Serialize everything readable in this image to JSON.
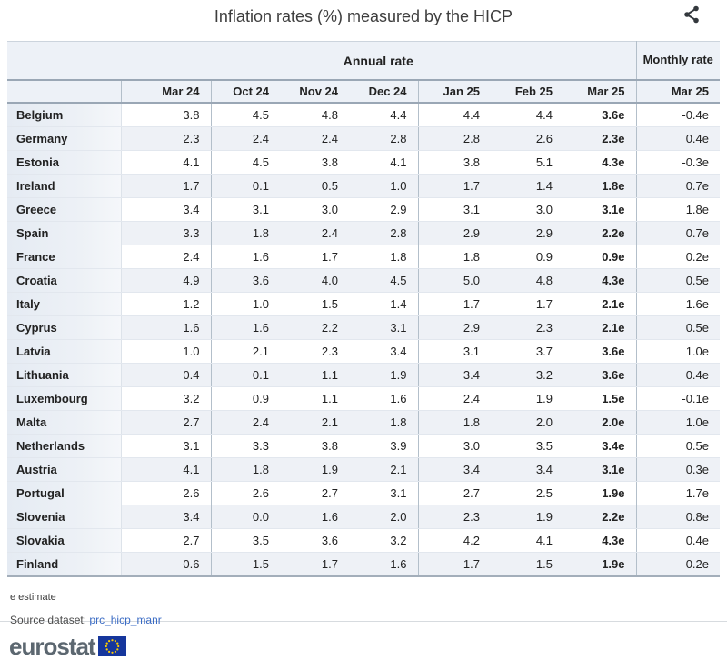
{
  "title": "Inflation rates (%) measured by the HICP",
  "toolbar": {
    "share_icon": "share-icon"
  },
  "table": {
    "annual_header": "Annual rate",
    "monthly_header": "Monthly rate",
    "columns": [
      "Mar 24",
      "Oct 24",
      "Nov 24",
      "Dec 24",
      "Jan 25",
      "Feb 25",
      "Mar 25"
    ],
    "monthly_column": "Mar 25",
    "rows": [
      {
        "country": "Belgium",
        "values": [
          "3.8",
          "4.5",
          "4.8",
          "4.4",
          "4.4",
          "4.4",
          "3.6e"
        ],
        "monthly": "-0.4e"
      },
      {
        "country": "Germany",
        "values": [
          "2.3",
          "2.4",
          "2.4",
          "2.8",
          "2.8",
          "2.6",
          "2.3e"
        ],
        "monthly": "0.4e"
      },
      {
        "country": "Estonia",
        "values": [
          "4.1",
          "4.5",
          "3.8",
          "4.1",
          "3.8",
          "5.1",
          "4.3e"
        ],
        "monthly": "-0.3e"
      },
      {
        "country": "Ireland",
        "values": [
          "1.7",
          "0.1",
          "0.5",
          "1.0",
          "1.7",
          "1.4",
          "1.8e"
        ],
        "monthly": "0.7e"
      },
      {
        "country": "Greece",
        "values": [
          "3.4",
          "3.1",
          "3.0",
          "2.9",
          "3.1",
          "3.0",
          "3.1e"
        ],
        "monthly": "1.8e"
      },
      {
        "country": "Spain",
        "values": [
          "3.3",
          "1.8",
          "2.4",
          "2.8",
          "2.9",
          "2.9",
          "2.2e"
        ],
        "monthly": "0.7e"
      },
      {
        "country": "France",
        "values": [
          "2.4",
          "1.6",
          "1.7",
          "1.8",
          "1.8",
          "0.9",
          "0.9e"
        ],
        "monthly": "0.2e"
      },
      {
        "country": "Croatia",
        "values": [
          "4.9",
          "3.6",
          "4.0",
          "4.5",
          "5.0",
          "4.8",
          "4.3e"
        ],
        "monthly": "0.5e"
      },
      {
        "country": "Italy",
        "values": [
          "1.2",
          "1.0",
          "1.5",
          "1.4",
          "1.7",
          "1.7",
          "2.1e"
        ],
        "monthly": "1.6e"
      },
      {
        "country": "Cyprus",
        "values": [
          "1.6",
          "1.6",
          "2.2",
          "3.1",
          "2.9",
          "2.3",
          "2.1e"
        ],
        "monthly": "0.5e"
      },
      {
        "country": "Latvia",
        "values": [
          "1.0",
          "2.1",
          "2.3",
          "3.4",
          "3.1",
          "3.7",
          "3.6e"
        ],
        "monthly": "1.0e"
      },
      {
        "country": "Lithuania",
        "values": [
          "0.4",
          "0.1",
          "1.1",
          "1.9",
          "3.4",
          "3.2",
          "3.6e"
        ],
        "monthly": "0.4e"
      },
      {
        "country": "Luxembourg",
        "values": [
          "3.2",
          "0.9",
          "1.1",
          "1.6",
          "2.4",
          "1.9",
          "1.5e"
        ],
        "monthly": "-0.1e"
      },
      {
        "country": "Malta",
        "values": [
          "2.7",
          "2.4",
          "2.1",
          "1.8",
          "1.8",
          "2.0",
          "2.0e"
        ],
        "monthly": "1.0e"
      },
      {
        "country": "Netherlands",
        "values": [
          "3.1",
          "3.3",
          "3.8",
          "3.9",
          "3.0",
          "3.5",
          "3.4e"
        ],
        "monthly": "0.5e"
      },
      {
        "country": "Austria",
        "values": [
          "4.1",
          "1.8",
          "1.9",
          "2.1",
          "3.4",
          "3.4",
          "3.1e"
        ],
        "monthly": "0.3e"
      },
      {
        "country": "Portugal",
        "values": [
          "2.6",
          "2.6",
          "2.7",
          "3.1",
          "2.7",
          "2.5",
          "1.9e"
        ],
        "monthly": "1.7e"
      },
      {
        "country": "Slovenia",
        "values": [
          "3.4",
          "0.0",
          "1.6",
          "2.0",
          "2.3",
          "1.9",
          "2.2e"
        ],
        "monthly": "0.8e"
      },
      {
        "country": "Slovakia",
        "values": [
          "2.7",
          "3.5",
          "3.6",
          "3.2",
          "4.2",
          "4.1",
          "4.3e"
        ],
        "monthly": "0.4e"
      },
      {
        "country": "Finland",
        "values": [
          "0.6",
          "1.5",
          "1.7",
          "1.6",
          "1.7",
          "1.5",
          "1.9e"
        ],
        "monthly": "0.2e"
      }
    ]
  },
  "footnote": "e estimate",
  "source": {
    "label": "Source dataset:",
    "link": "prc_hicp_manr"
  },
  "logo": {
    "text": "eurostat",
    "flag_icon": "eu-flag-icon"
  },
  "colors": {
    "header_bg": "#edf1f7",
    "row_stripe": "#eef1f6",
    "border_dark": "#9aa7b5",
    "border_light": "#e2e7ee",
    "link_blue": "#3a6bc4",
    "logo_gray": "#5c6770",
    "flag_blue": "#16369c",
    "star_yellow": "#ffcc00"
  },
  "chart_data": {
    "type": "table",
    "title": "Inflation rates (%) measured by the HICP",
    "column_groups": [
      {
        "label": "Annual rate",
        "columns": [
          "Mar 24",
          "Oct 24",
          "Nov 24",
          "Dec 24",
          "Jan 25",
          "Feb 25",
          "Mar 25"
        ]
      },
      {
        "label": "Monthly rate",
        "columns": [
          "Mar 25"
        ]
      }
    ],
    "estimated_columns": [
      "Mar 25 (annual)",
      "Mar 25 (monthly)"
    ],
    "rows": [
      {
        "country": "Belgium",
        "annual": [
          3.8,
          4.5,
          4.8,
          4.4,
          4.4,
          4.4,
          3.6
        ],
        "monthly": -0.4
      },
      {
        "country": "Germany",
        "annual": [
          2.3,
          2.4,
          2.4,
          2.8,
          2.8,
          2.6,
          2.3
        ],
        "monthly": 0.4
      },
      {
        "country": "Estonia",
        "annual": [
          4.1,
          4.5,
          3.8,
          4.1,
          3.8,
          5.1,
          4.3
        ],
        "monthly": -0.3
      },
      {
        "country": "Ireland",
        "annual": [
          1.7,
          0.1,
          0.5,
          1.0,
          1.7,
          1.4,
          1.8
        ],
        "monthly": 0.7
      },
      {
        "country": "Greece",
        "annual": [
          3.4,
          3.1,
          3.0,
          2.9,
          3.1,
          3.0,
          3.1
        ],
        "monthly": 1.8
      },
      {
        "country": "Spain",
        "annual": [
          3.3,
          1.8,
          2.4,
          2.8,
          2.9,
          2.9,
          2.2
        ],
        "monthly": 0.7
      },
      {
        "country": "France",
        "annual": [
          2.4,
          1.6,
          1.7,
          1.8,
          1.8,
          0.9,
          0.9
        ],
        "monthly": 0.2
      },
      {
        "country": "Croatia",
        "annual": [
          4.9,
          3.6,
          4.0,
          4.5,
          5.0,
          4.8,
          4.3
        ],
        "monthly": 0.5
      },
      {
        "country": "Italy",
        "annual": [
          1.2,
          1.0,
          1.5,
          1.4,
          1.7,
          1.7,
          2.1
        ],
        "monthly": 1.6
      },
      {
        "country": "Cyprus",
        "annual": [
          1.6,
          1.6,
          2.2,
          3.1,
          2.9,
          2.3,
          2.1
        ],
        "monthly": 0.5
      },
      {
        "country": "Latvia",
        "annual": [
          1.0,
          2.1,
          2.3,
          3.4,
          3.1,
          3.7,
          3.6
        ],
        "monthly": 1.0
      },
      {
        "country": "Lithuania",
        "annual": [
          0.4,
          0.1,
          1.1,
          1.9,
          3.4,
          3.2,
          3.6
        ],
        "monthly": 0.4
      },
      {
        "country": "Luxembourg",
        "annual": [
          3.2,
          0.9,
          1.1,
          1.6,
          2.4,
          1.9,
          1.5
        ],
        "monthly": -0.1
      },
      {
        "country": "Malta",
        "annual": [
          2.7,
          2.4,
          2.1,
          1.8,
          1.8,
          2.0,
          2.0
        ],
        "monthly": 1.0
      },
      {
        "country": "Netherlands",
        "annual": [
          3.1,
          3.3,
          3.8,
          3.9,
          3.0,
          3.5,
          3.4
        ],
        "monthly": 0.5
      },
      {
        "country": "Austria",
        "annual": [
          4.1,
          1.8,
          1.9,
          2.1,
          3.4,
          3.4,
          3.1
        ],
        "monthly": 0.3
      },
      {
        "country": "Portugal",
        "annual": [
          2.6,
          2.6,
          2.7,
          3.1,
          2.7,
          2.5,
          1.9
        ],
        "monthly": 1.7
      },
      {
        "country": "Slovenia",
        "annual": [
          3.4,
          0.0,
          1.6,
          2.0,
          2.3,
          1.9,
          2.2
        ],
        "monthly": 0.8
      },
      {
        "country": "Slovakia",
        "annual": [
          2.7,
          3.5,
          3.6,
          3.2,
          4.2,
          4.1,
          4.3
        ],
        "monthly": 0.4
      },
      {
        "country": "Finland",
        "annual": [
          0.6,
          1.5,
          1.7,
          1.6,
          1.7,
          1.5,
          1.9
        ],
        "monthly": 0.2
      }
    ],
    "note": "e estimate",
    "source_dataset": "prc_hicp_manr"
  }
}
